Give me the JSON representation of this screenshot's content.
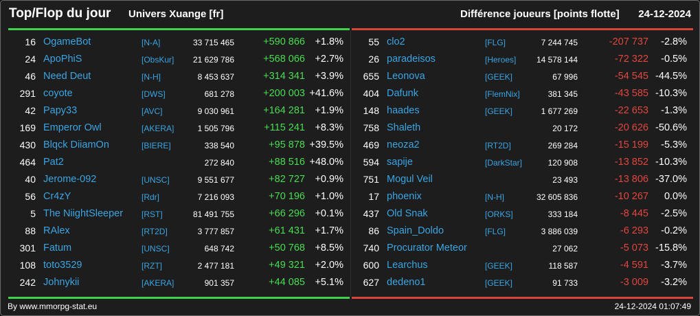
{
  "header": {
    "title": "Top/Flop du jour",
    "univers": "Univers Xuange [fr]",
    "diff": "Différence joueurs [points flotte]",
    "date": "24-12-2024"
  },
  "top": [
    {
      "rank": "16",
      "name": "OgameBot",
      "alliance": "[N-A]",
      "points": "33 715 465",
      "delta": "+590 866",
      "pct": "+1.8%"
    },
    {
      "rank": "24",
      "name": "ApoPhiS",
      "alliance": "[ObsKur]",
      "points": "21 629 786",
      "delta": "+568 066",
      "pct": "+2.7%"
    },
    {
      "rank": "46",
      "name": "Need Deut",
      "alliance": "[N-H]",
      "points": "8 453 637",
      "delta": "+314 341",
      "pct": "+3.9%"
    },
    {
      "rank": "291",
      "name": "coyote",
      "alliance": "[DWS]",
      "points": "681 278",
      "delta": "+200 003",
      "pct": "+41.6%"
    },
    {
      "rank": "42",
      "name": "Papy33",
      "alliance": "[AVC]",
      "points": "9 030 961",
      "delta": "+164 281",
      "pct": "+1.9%"
    },
    {
      "rank": "169",
      "name": "Emperor Owl",
      "alliance": "[AKERA]",
      "points": "1 505 796",
      "delta": "+115 241",
      "pct": "+8.3%"
    },
    {
      "rank": "430",
      "name": "Blqck DiiamOn",
      "alliance": "[BIERE]",
      "points": "338 540",
      "delta": "+95 878",
      "pct": "+39.5%"
    },
    {
      "rank": "464",
      "name": "Pat2",
      "alliance": "",
      "points": "272 840",
      "delta": "+88 516",
      "pct": "+48.0%"
    },
    {
      "rank": "40",
      "name": "Jerome-092",
      "alliance": "[UNSC]",
      "points": "9 551 677",
      "delta": "+82 727",
      "pct": "+0.9%"
    },
    {
      "rank": "56",
      "name": "Cr4zY",
      "alliance": "[Rdr]",
      "points": "7 216 093",
      "delta": "+70 196",
      "pct": "+1.0%"
    },
    {
      "rank": "5",
      "name": "The NiightSleeper",
      "alliance": "[RST]",
      "points": "81 491 755",
      "delta": "+66 296",
      "pct": "+0.1%"
    },
    {
      "rank": "88",
      "name": "RAlex",
      "alliance": "[RT2D]",
      "points": "3 777 857",
      "delta": "+61 431",
      "pct": "+1.7%"
    },
    {
      "rank": "301",
      "name": "Fatum",
      "alliance": "[UNSC]",
      "points": "648 742",
      "delta": "+50 768",
      "pct": "+8.5%"
    },
    {
      "rank": "108",
      "name": "toto3529",
      "alliance": "[RZT]",
      "points": "2 477 181",
      "delta": "+49 321",
      "pct": "+2.0%"
    },
    {
      "rank": "242",
      "name": "Johnykii",
      "alliance": "[AKERA]",
      "points": "901 357",
      "delta": "+44 085",
      "pct": "+5.1%"
    }
  ],
  "flop": [
    {
      "rank": "55",
      "name": "clo2",
      "alliance": "[FLG]",
      "points": "7 244 745",
      "delta": "-207 737",
      "pct": "-2.8%"
    },
    {
      "rank": "26",
      "name": "paradeisos",
      "alliance": "[Heroes]",
      "points": "14 578 144",
      "delta": "-72 322",
      "pct": "-0.5%"
    },
    {
      "rank": "655",
      "name": "Leonova",
      "alliance": "[GEEK]",
      "points": "67 996",
      "delta": "-54 545",
      "pct": "-44.5%"
    },
    {
      "rank": "404",
      "name": "Dafunk",
      "alliance": "[FlemNix]",
      "points": "381 345",
      "delta": "-43 585",
      "pct": "-10.3%"
    },
    {
      "rank": "148",
      "name": "haades",
      "alliance": "[GEEK]",
      "points": "1 677 269",
      "delta": "-22 653",
      "pct": "-1.3%"
    },
    {
      "rank": "758",
      "name": "Shaleth",
      "alliance": "",
      "points": "20 172",
      "delta": "-20 626",
      "pct": "-50.6%"
    },
    {
      "rank": "469",
      "name": "neoza2",
      "alliance": "[RT2D]",
      "points": "269 284",
      "delta": "-15 199",
      "pct": "-5.3%"
    },
    {
      "rank": "594",
      "name": "sapije",
      "alliance": "[DarkStar]",
      "points": "120 908",
      "delta": "-13 852",
      "pct": "-10.3%"
    },
    {
      "rank": "751",
      "name": "Mogul Veil",
      "alliance": "",
      "points": "23 493",
      "delta": "-13 806",
      "pct": "-37.0%"
    },
    {
      "rank": "17",
      "name": "phoenix",
      "alliance": "[N-H]",
      "points": "32 605 836",
      "delta": "-10 267",
      "pct": "0.0%"
    },
    {
      "rank": "437",
      "name": "Old Snak",
      "alliance": "[ORKS]",
      "points": "333 184",
      "delta": "-8 445",
      "pct": "-2.5%"
    },
    {
      "rank": "86",
      "name": "Spain_Doldo",
      "alliance": "[FLG]",
      "points": "3 886 039",
      "delta": "-6 293",
      "pct": "-0.2%"
    },
    {
      "rank": "740",
      "name": "Procurator Meteor",
      "alliance": "",
      "points": "27 062",
      "delta": "-5 073",
      "pct": "-15.8%"
    },
    {
      "rank": "600",
      "name": "Learchus",
      "alliance": "[GEEK]",
      "points": "118 587",
      "delta": "-4 591",
      "pct": "-3.7%"
    },
    {
      "rank": "627",
      "name": "dedeno1",
      "alliance": "[GEEK]",
      "points": "91 733",
      "delta": "-3 009",
      "pct": "-3.2%"
    }
  ],
  "footer": {
    "credit": "By www.mmorpg-stat.eu",
    "timestamp": "24-12-2024 01:07:49"
  },
  "colors": {
    "gain": "#49dd52",
    "loss": "#e2463f",
    "link": "#3aa5e4",
    "background": "#1d1d1d"
  }
}
